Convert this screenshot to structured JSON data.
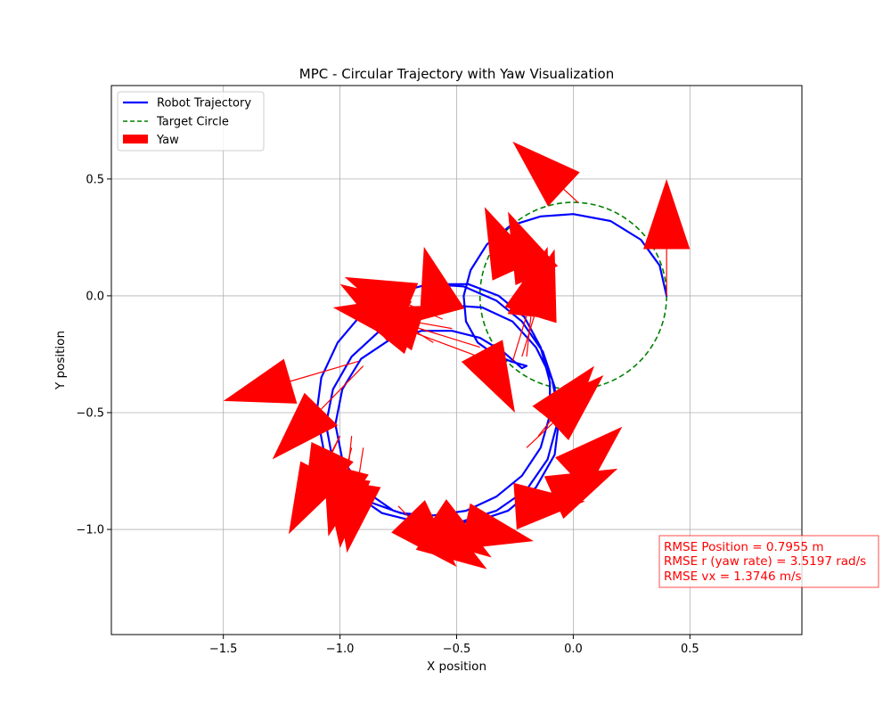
{
  "chart_data": {
    "type": "line",
    "title": "MPC - Circular Trajectory with Yaw Visualization",
    "xlabel": "X position",
    "ylabel": "Y position",
    "xlim": [
      -1.98,
      0.98
    ],
    "ylim": [
      -1.45,
      0.9
    ],
    "xticks": [
      -1.5,
      -1.0,
      -0.5,
      0.0,
      0.5
    ],
    "yticks": [
      -1.0,
      -0.5,
      0.0,
      0.5
    ],
    "xtick_labels": [
      "−1.5",
      "−1.0",
      "−0.5",
      "0.0",
      "0.5"
    ],
    "ytick_labels": [
      "−1.0",
      "−0.5",
      "0.0",
      "0.5"
    ],
    "grid": true,
    "legend": {
      "placement": "upper-left",
      "entries": [
        {
          "label": "Robot Trajectory",
          "style": "solid-line",
          "color": "#0000ff"
        },
        {
          "label": "Target Circle",
          "style": "dashed-line",
          "color": "#008000"
        },
        {
          "label": "Yaw",
          "style": "patch",
          "color": "#ff0000"
        }
      ]
    },
    "series": [
      {
        "name": "Robot Trajectory",
        "color": "#0000ff",
        "points": [
          [
            0.4,
            0.0
          ],
          [
            0.37,
            0.13
          ],
          [
            0.29,
            0.24
          ],
          [
            0.16,
            0.32
          ],
          [
            0.0,
            0.35
          ],
          [
            -0.14,
            0.34
          ],
          [
            -0.27,
            0.3
          ],
          [
            -0.37,
            0.22
          ],
          [
            -0.44,
            0.11
          ],
          [
            -0.47,
            0.0
          ],
          [
            -0.46,
            -0.11
          ],
          [
            -0.41,
            -0.2
          ],
          [
            -0.34,
            -0.25
          ],
          [
            -0.27,
            -0.28
          ],
          [
            -0.2,
            -0.3
          ],
          [
            -0.22,
            -0.31
          ],
          [
            -0.3,
            -0.24
          ],
          [
            -0.4,
            -0.18
          ],
          [
            -0.52,
            -0.15
          ],
          [
            -0.65,
            -0.15
          ],
          [
            -0.79,
            -0.19
          ],
          [
            -0.91,
            -0.27
          ],
          [
            -0.99,
            -0.4
          ],
          [
            -1.02,
            -0.55
          ],
          [
            -0.99,
            -0.7
          ],
          [
            -0.9,
            -0.83
          ],
          [
            -0.77,
            -0.92
          ],
          [
            -0.6,
            -0.97
          ],
          [
            -0.43,
            -0.97
          ],
          [
            -0.28,
            -0.92
          ],
          [
            -0.16,
            -0.82
          ],
          [
            -0.08,
            -0.68
          ],
          [
            -0.06,
            -0.52
          ],
          [
            -0.09,
            -0.36
          ],
          [
            -0.16,
            -0.22
          ],
          [
            -0.26,
            -0.11
          ],
          [
            -0.39,
            -0.05
          ],
          [
            -0.54,
            -0.04
          ],
          [
            -0.69,
            -0.07
          ],
          [
            -0.83,
            -0.15
          ],
          [
            -0.95,
            -0.26
          ],
          [
            -1.03,
            -0.4
          ],
          [
            -1.06,
            -0.55
          ],
          [
            -1.03,
            -0.71
          ],
          [
            -0.95,
            -0.84
          ],
          [
            -0.82,
            -0.93
          ],
          [
            -0.66,
            -0.97
          ],
          [
            -0.49,
            -0.97
          ],
          [
            -0.33,
            -0.92
          ],
          [
            -0.2,
            -0.83
          ],
          [
            -0.11,
            -0.7
          ],
          [
            -0.07,
            -0.55
          ],
          [
            -0.08,
            -0.39
          ],
          [
            -0.13,
            -0.24
          ],
          [
            -0.22,
            -0.11
          ],
          [
            -0.33,
            -0.02
          ],
          [
            -0.47,
            0.04
          ],
          [
            -0.62,
            0.05
          ],
          [
            -0.77,
            0.01
          ],
          [
            -0.9,
            -0.07
          ],
          [
            -1.01,
            -0.2
          ],
          [
            -1.08,
            -0.35
          ],
          [
            -1.1,
            -0.5
          ],
          [
            -1.07,
            -0.66
          ],
          [
            -0.99,
            -0.79
          ],
          [
            -0.88,
            -0.88
          ],
          [
            -0.74,
            -0.93
          ],
          [
            -0.6,
            -0.94
          ],
          [
            -0.46,
            -0.92
          ],
          [
            -0.33,
            -0.86
          ],
          [
            -0.22,
            -0.77
          ],
          [
            -0.14,
            -0.65
          ],
          [
            -0.1,
            -0.51
          ],
          [
            -0.1,
            -0.37
          ],
          [
            -0.14,
            -0.22
          ],
          [
            -0.21,
            -0.09
          ],
          [
            -0.32,
            0.0
          ],
          [
            -0.45,
            0.05
          ],
          [
            -0.58,
            0.05
          ]
        ]
      },
      {
        "name": "Target Circle",
        "color": "#008000",
        "center": [
          0.0,
          0.0
        ],
        "radius": 0.4
      }
    ],
    "yaw_arrows": {
      "color": "#ff0000",
      "head_width": 0.1,
      "head_length": 0.3,
      "arrows": [
        [
          0.4,
          0.0,
          0.4,
          0.5
        ],
        [
          0.02,
          0.4,
          -0.26,
          0.66
        ],
        [
          -0.28,
          0.16,
          -0.38,
          0.38
        ],
        [
          -0.19,
          0.16,
          -0.28,
          0.36
        ],
        [
          -0.26,
          -0.28,
          -0.11,
          0.21
        ],
        [
          -0.22,
          -0.26,
          -0.08,
          0.2
        ],
        [
          -0.2,
          -0.26,
          -0.15,
          0.21
        ],
        [
          -0.6,
          0.06,
          -0.64,
          0.21
        ],
        [
          -0.4,
          -0.22,
          -0.95,
          -0.05
        ],
        [
          -0.3,
          -0.3,
          -0.97,
          -0.05
        ],
        [
          -0.52,
          -0.14,
          -1.03,
          -0.05
        ],
        [
          -0.6,
          -0.2,
          -1.0,
          0.05
        ],
        [
          -0.56,
          -0.1,
          -0.98,
          0.08
        ],
        [
          -0.92,
          -0.28,
          -1.5,
          -0.45
        ],
        [
          -0.9,
          -0.3,
          -1.29,
          -0.7
        ],
        [
          -1.0,
          -0.6,
          -1.22,
          -1.02
        ],
        [
          -1.0,
          -0.6,
          -1.16,
          -0.94
        ],
        [
          -0.95,
          -0.65,
          -1.05,
          -1.03
        ],
        [
          -0.9,
          -0.65,
          -0.97,
          -1.1
        ],
        [
          -0.95,
          -0.6,
          -1.0,
          -1.08
        ],
        [
          -0.75,
          -0.9,
          -0.5,
          -1.16
        ],
        [
          -0.7,
          -0.95,
          -0.37,
          -1.17
        ],
        [
          -0.65,
          -0.92,
          -0.35,
          -1.12
        ],
        [
          -0.4,
          -1.0,
          -0.17,
          -1.05
        ],
        [
          -0.25,
          -0.9,
          0.05,
          -0.88
        ],
        [
          -0.12,
          -0.88,
          0.19,
          -0.74
        ],
        [
          -0.1,
          -0.85,
          0.21,
          -0.56
        ],
        [
          -0.2,
          -0.65,
          0.13,
          -0.34
        ],
        [
          -0.15,
          -0.6,
          0.09,
          -0.3
        ],
        [
          -0.33,
          -0.35,
          -0.25,
          -0.5
        ]
      ]
    },
    "annotations": [
      {
        "lines": [
          "RMSE Position = 0.7955 m",
          "RMSE r (yaw rate) = 3.5197 rad/s",
          "RMSE vx = 1.3746 m/s"
        ],
        "color": "#ff0000",
        "placement": "lower-right"
      }
    ]
  }
}
